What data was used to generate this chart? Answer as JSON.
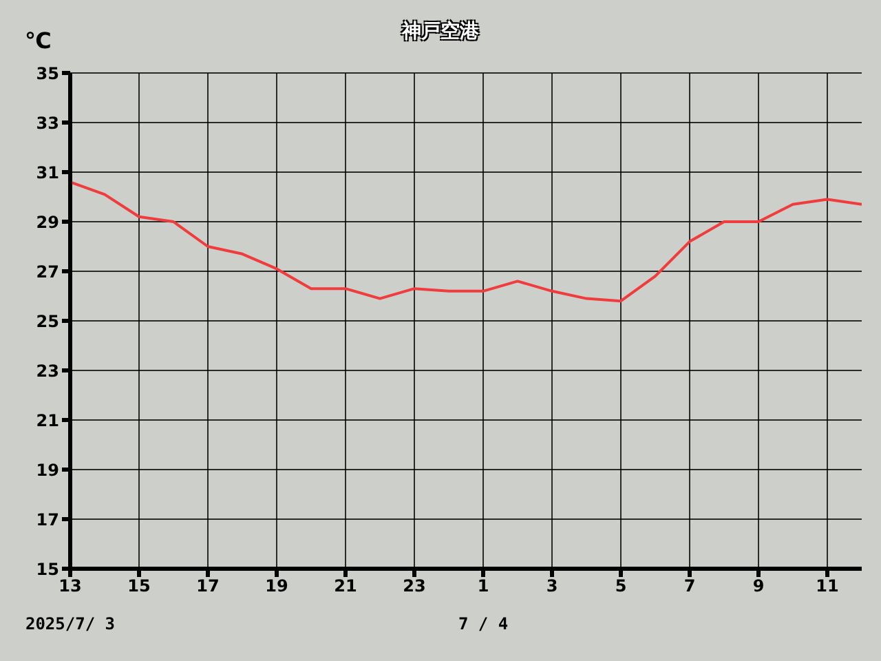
{
  "chart_data": {
    "type": "line",
    "title": "神戸空港",
    "ylabel": "℃",
    "x": [
      "2025-07-03T13:00",
      "2025-07-03T14:00",
      "2025-07-03T15:00",
      "2025-07-03T16:00",
      "2025-07-03T17:00",
      "2025-07-03T18:00",
      "2025-07-03T19:00",
      "2025-07-03T20:00",
      "2025-07-03T21:00",
      "2025-07-03T22:00",
      "2025-07-03T23:00",
      "2025-07-04T00:00",
      "2025-07-04T01:00",
      "2025-07-04T02:00",
      "2025-07-04T03:00",
      "2025-07-04T04:00",
      "2025-07-04T05:00",
      "2025-07-04T06:00",
      "2025-07-04T07:00",
      "2025-07-04T08:00",
      "2025-07-04T09:00",
      "2025-07-04T10:00",
      "2025-07-04T11:00",
      "2025-07-04T12:00"
    ],
    "series": [
      {
        "color": "#f03c3c",
        "values": [
          30.6,
          30.1,
          29.2,
          29.0,
          28.0,
          27.7,
          27.1,
          26.3,
          26.3,
          25.9,
          26.3,
          26.2,
          26.2,
          26.6,
          26.2,
          25.9,
          25.8,
          26.8,
          28.2,
          29.0,
          29.0,
          29.7,
          29.9,
          29.7
        ]
      }
    ],
    "xlim": [
      "2025-07-03T13:00",
      "2025-07-04T12:00"
    ],
    "xticks": [
      {
        "value": "2025-07-03T13:00",
        "label": "13"
      },
      {
        "value": "2025-07-03T15:00",
        "label": "15"
      },
      {
        "value": "2025-07-03T17:00",
        "label": "17"
      },
      {
        "value": "2025-07-03T19:00",
        "label": "19"
      },
      {
        "value": "2025-07-03T21:00",
        "label": "21"
      },
      {
        "value": "2025-07-03T23:00",
        "label": "23"
      },
      {
        "value": "2025-07-04T01:00",
        "label": "1"
      },
      {
        "value": "2025-07-04T03:00",
        "label": "3"
      },
      {
        "value": "2025-07-04T05:00",
        "label": "5"
      },
      {
        "value": "2025-07-04T07:00",
        "label": "7"
      },
      {
        "value": "2025-07-04T09:00",
        "label": "9"
      },
      {
        "value": "2025-07-04T11:00",
        "label": "11"
      }
    ],
    "ylim": [
      15,
      35
    ],
    "yticks": [
      15,
      17,
      19,
      21,
      23,
      25,
      27,
      29,
      31,
      33,
      35
    ],
    "annotations": [
      "2025/7/ 3",
      "7 / 4"
    ],
    "grid": true,
    "legend": false,
    "marker": "none",
    "line_style": "solid"
  }
}
